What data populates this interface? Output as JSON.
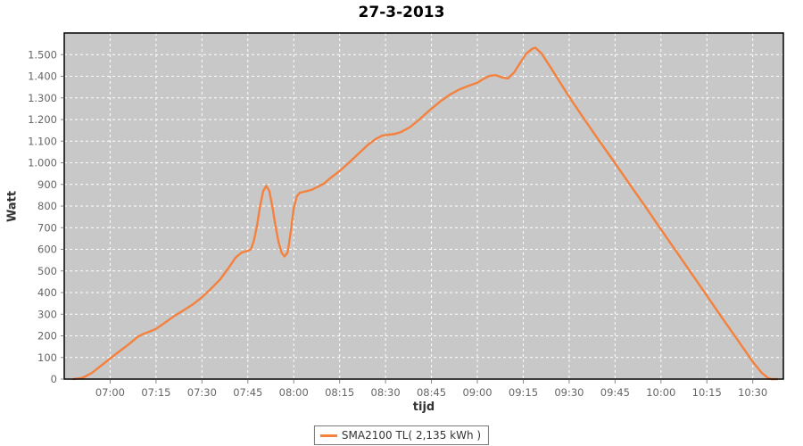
{
  "title": "27-3-2013",
  "colors": {
    "series_line": "#F4813D",
    "plot_background": "#C8C8C8",
    "gridline": "#FFFFFF",
    "plot_border": "#000000",
    "tick_label": "#666666",
    "axis_title": "#333333",
    "page_background": "#FFFFFF",
    "legend_border": "#777777"
  },
  "legend": {
    "label": "SMA2100 TL( 2,135 kWh )"
  },
  "chart_data": {
    "type": "line",
    "title": "27-3-2013",
    "xlabel": "tijd",
    "ylabel": "Watt",
    "x_range": [
      "06:45",
      "10:40"
    ],
    "ylim": [
      0,
      1600
    ],
    "grid": "white dashed on gray plot",
    "legend_position": "bottom-center",
    "x_ticks": [
      "07:00",
      "07:15",
      "07:30",
      "07:45",
      "08:00",
      "08:15",
      "08:30",
      "08:45",
      "09:00",
      "09:15",
      "09:30",
      "09:45",
      "10:00",
      "10:15",
      "10:30"
    ],
    "y_ticks": [
      0,
      100,
      200,
      300,
      400,
      500,
      600,
      700,
      800,
      900,
      1000,
      1100,
      1200,
      1300,
      1400,
      1500
    ],
    "y_tick_labels": [
      "0",
      "100",
      "200",
      "300",
      "400",
      "500",
      "600",
      "700",
      "800",
      "900",
      "1.000",
      "1.100",
      "1.200",
      "1.300",
      "1.400",
      "1.500"
    ],
    "series": [
      {
        "name": "SMA2100 TL( 2,135 kWh )",
        "color": "#F4813D",
        "points": [
          [
            "06:48",
            0
          ],
          [
            "06:51",
            6
          ],
          [
            "06:54",
            28
          ],
          [
            "06:57",
            62
          ],
          [
            "07:00",
            95
          ],
          [
            "07:03",
            128
          ],
          [
            "07:06",
            160
          ],
          [
            "07:09",
            195
          ],
          [
            "07:11",
            210
          ],
          [
            "07:13",
            220
          ],
          [
            "07:15",
            232
          ],
          [
            "07:18",
            262
          ],
          [
            "07:21",
            292
          ],
          [
            "07:24",
            318
          ],
          [
            "07:27",
            345
          ],
          [
            "07:30",
            378
          ],
          [
            "07:33",
            418
          ],
          [
            "07:36",
            462
          ],
          [
            "07:39",
            520
          ],
          [
            "07:41",
            562
          ],
          [
            "07:43",
            585
          ],
          [
            "07:45",
            593
          ],
          [
            "07:46",
            600
          ],
          [
            "07:47",
            640
          ],
          [
            "07:48",
            710
          ],
          [
            "07:49",
            800
          ],
          [
            "07:50",
            868
          ],
          [
            "07:51",
            893
          ],
          [
            "07:52",
            870
          ],
          [
            "07:53",
            800
          ],
          [
            "07:54",
            710
          ],
          [
            "07:55",
            635
          ],
          [
            "07:56",
            585
          ],
          [
            "07:57",
            567
          ],
          [
            "07:58",
            585
          ],
          [
            "07:59",
            680
          ],
          [
            "08:00",
            790
          ],
          [
            "08:01",
            845
          ],
          [
            "08:02",
            862
          ],
          [
            "08:04",
            868
          ],
          [
            "08:06",
            876
          ],
          [
            "08:08",
            890
          ],
          [
            "08:10",
            905
          ],
          [
            "08:12",
            930
          ],
          [
            "08:15",
            962
          ],
          [
            "08:18",
            1000
          ],
          [
            "08:21",
            1040
          ],
          [
            "08:24",
            1080
          ],
          [
            "08:27",
            1112
          ],
          [
            "08:29",
            1126
          ],
          [
            "08:31",
            1130
          ],
          [
            "08:33",
            1133
          ],
          [
            "08:35",
            1142
          ],
          [
            "08:38",
            1165
          ],
          [
            "08:41",
            1200
          ],
          [
            "08:44",
            1238
          ],
          [
            "08:45",
            1250
          ],
          [
            "08:48",
            1285
          ],
          [
            "08:51",
            1315
          ],
          [
            "08:54",
            1338
          ],
          [
            "08:57",
            1355
          ],
          [
            "09:00",
            1370
          ],
          [
            "09:02",
            1388
          ],
          [
            "09:04",
            1402
          ],
          [
            "09:06",
            1405
          ],
          [
            "09:08",
            1395
          ],
          [
            "09:10",
            1390
          ],
          [
            "09:12",
            1418
          ],
          [
            "09:14",
            1462
          ],
          [
            "09:16",
            1505
          ],
          [
            "09:18",
            1528
          ],
          [
            "09:19",
            1532
          ],
          [
            "09:21",
            1505
          ],
          [
            "09:24",
            1440
          ],
          [
            "09:27",
            1372
          ],
          [
            "09:30",
            1305
          ],
          [
            "09:35",
            1200
          ],
          [
            "09:40",
            1098
          ],
          [
            "09:45",
            998
          ],
          [
            "09:50",
            896
          ],
          [
            "09:55",
            795
          ],
          [
            "10:00",
            692
          ],
          [
            "10:05",
            590
          ],
          [
            "10:10",
            488
          ],
          [
            "10:15",
            385
          ],
          [
            "10:20",
            283
          ],
          [
            "10:25",
            182
          ],
          [
            "10:30",
            80
          ],
          [
            "10:33",
            28
          ],
          [
            "10:35",
            5
          ],
          [
            "10:36",
            0
          ],
          [
            "10:38",
            0
          ]
        ]
      }
    ]
  }
}
